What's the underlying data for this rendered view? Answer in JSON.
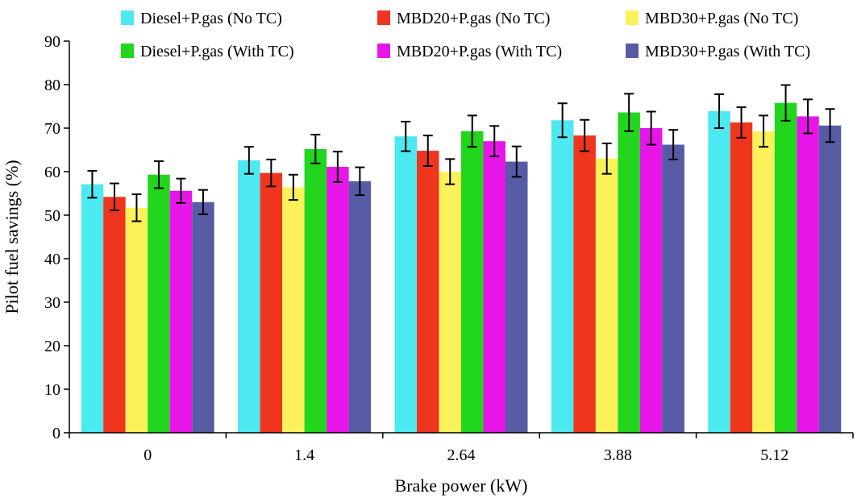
{
  "chart_data": {
    "type": "bar",
    "title": "",
    "xlabel": "Brake power (kW)",
    "ylabel": "Pilot fuel savings (%)",
    "ylim": [
      0,
      90
    ],
    "yticks": [
      "0",
      "10",
      "20",
      "30",
      "40",
      "50",
      "60",
      "70",
      "80",
      "90"
    ],
    "categories": [
      "0",
      "1.4",
      "2.64",
      "3.88",
      "5.12"
    ],
    "legend_position": "top",
    "grid": false,
    "series": [
      {
        "name": "Diesel+P.gas (No TC)",
        "color": "#4de9f0",
        "values": [
          57.1,
          62.6,
          68.1,
          71.8,
          73.9
        ],
        "errors": [
          3.1,
          3.1,
          3.4,
          3.9,
          3.9
        ]
      },
      {
        "name": "MBD20+P.gas (No TC)",
        "color": "#f0351f",
        "values": [
          54.2,
          59.7,
          64.8,
          68.3,
          71.3
        ],
        "errors": [
          3.1,
          3.1,
          3.5,
          3.6,
          3.5
        ]
      },
      {
        "name": "MBD30+P.gas (No TC)",
        "color": "#fbf25b",
        "values": [
          51.7,
          56.4,
          60.0,
          63.0,
          69.3
        ],
        "errors": [
          3.1,
          2.9,
          2.9,
          3.5,
          3.6
        ]
      },
      {
        "name": "Diesel+P.gas (With TC)",
        "color": "#21d61d",
        "values": [
          59.3,
          65.2,
          69.3,
          73.6,
          75.8
        ],
        "errors": [
          3.1,
          3.3,
          3.6,
          4.3,
          4.1
        ]
      },
      {
        "name": "MBD20+P.gas (With TC)",
        "color": "#e815e8",
        "values": [
          55.6,
          61.1,
          67.0,
          70.0,
          72.7
        ],
        "errors": [
          2.8,
          3.5,
          3.5,
          3.8,
          3.9
        ]
      },
      {
        "name": "MBD30+P.gas (With TC)",
        "color": "#575ba4",
        "values": [
          53.0,
          57.8,
          62.3,
          66.2,
          70.6
        ],
        "errors": [
          2.8,
          3.2,
          3.5,
          3.4,
          3.8
        ]
      }
    ]
  }
}
